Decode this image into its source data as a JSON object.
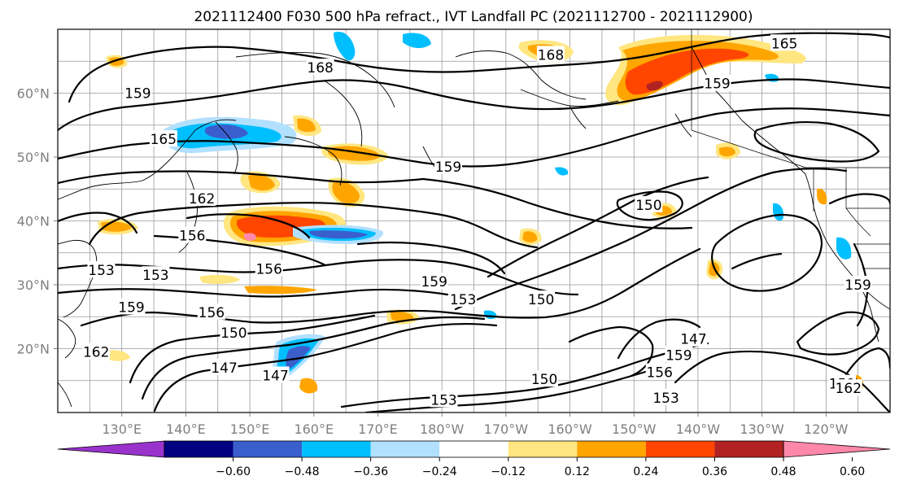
{
  "figure": {
    "title": "2021112400 F030 500 hPa refract., IVT Landfall PC (2021112700 - 2021112900)"
  },
  "map": {
    "lon_range": [
      120,
      -110
    ],
    "lat_range": [
      10,
      70
    ],
    "lon_ticks": [
      {
        "lon": 130,
        "label": "130°E"
      },
      {
        "lon": 140,
        "label": "140°E"
      },
      {
        "lon": 150,
        "label": "150°E"
      },
      {
        "lon": 160,
        "label": "160°E"
      },
      {
        "lon": 170,
        "label": "170°E"
      },
      {
        "lon": 180,
        "label": "180°W"
      },
      {
        "lon": 190,
        "label": "170°W"
      },
      {
        "lon": 200,
        "label": "160°W"
      },
      {
        "lon": 210,
        "label": "150°W"
      },
      {
        "lon": 220,
        "label": "140°W"
      },
      {
        "lon": 230,
        "label": "130°W"
      },
      {
        "lon": 240,
        "label": "120°W"
      }
    ],
    "lat_ticks": [
      {
        "lat": 20,
        "label": "20°N"
      },
      {
        "lat": 30,
        "label": "30°N"
      },
      {
        "lat": 40,
        "label": "40°N"
      },
      {
        "lat": 50,
        "label": "50°N"
      },
      {
        "lat": 60,
        "label": "60°N"
      }
    ],
    "grid_lines": true,
    "grid_lon_step": 5,
    "grid_lat_step": 5,
    "contour_levels": [
      147,
      150,
      153,
      156,
      159,
      162,
      165,
      168
    ],
    "contour_labels": [
      {
        "text": "168",
        "lon": 161,
        "lat": 64
      },
      {
        "text": "168",
        "lon": 197,
        "lat": 66
      },
      {
        "text": "165",
        "lon": 233.5,
        "lat": 67.8
      },
      {
        "text": "159",
        "lon": 132.5,
        "lat": 60
      },
      {
        "text": "159",
        "lon": 223,
        "lat": 61.5
      },
      {
        "text": "165",
        "lon": 136.5,
        "lat": 52.8
      },
      {
        "text": "159",
        "lon": 181,
        "lat": 48.5
      },
      {
        "text": "162",
        "lon": 142.5,
        "lat": 43.5
      },
      {
        "text": "150",
        "lon": 212.3,
        "lat": 42.5
      },
      {
        "text": "156",
        "lon": 141,
        "lat": 37.7
      },
      {
        "text": "153",
        "lon": 126.8,
        "lat": 32.3
      },
      {
        "text": "153",
        "lon": 135.3,
        "lat": 31.5
      },
      {
        "text": "156",
        "lon": 153,
        "lat": 32.5
      },
      {
        "text": "159",
        "lon": 178.8,
        "lat": 30.5
      },
      {
        "text": "159",
        "lon": 131.5,
        "lat": 26.5
      },
      {
        "text": "156",
        "lon": 144,
        "lat": 25.7
      },
      {
        "text": "153",
        "lon": 183.3,
        "lat": 27.7
      },
      {
        "text": "150",
        "lon": 195.5,
        "lat": 27.7
      },
      {
        "text": "150",
        "lon": 147.5,
        "lat": 22.5
      },
      {
        "text": "162",
        "lon": 126,
        "lat": 19.5
      },
      {
        "text": "147",
        "lon": 146,
        "lat": 17
      },
      {
        "text": "147",
        "lon": 154,
        "lat": 15.8
      },
      {
        "text": "147",
        "lon": 219.3,
        "lat": 21.5
      },
      {
        "text": "159",
        "lon": 217,
        "lat": 19
      },
      {
        "text": "156",
        "lon": 214,
        "lat": 16.3
      },
      {
        "text": "150",
        "lon": 196,
        "lat": 15.2
      },
      {
        "text": "153",
        "lon": 180.3,
        "lat": 12
      },
      {
        "text": "153",
        "lon": 215,
        "lat": 12.3
      },
      {
        "text": "159",
        "lon": 242.5,
        "lat": 14.5
      },
      {
        "text": "162",
        "lon": 243.5,
        "lat": 13.8
      },
      {
        "text": "159",
        "lon": 245,
        "lat": 30
      }
    ]
  },
  "colorbar": {
    "tick_labels": [
      "−0.60",
      "−0.48",
      "−0.36",
      "−0.24",
      "−0.12",
      "0.12",
      "0.24",
      "0.36",
      "0.48",
      "0.60"
    ],
    "colors": [
      "#9933cc",
      "#000080",
      "#3a5fcd",
      "#00bfff",
      "#b2e0ff",
      "#ffffff",
      "#ffe680",
      "#ffa500",
      "#ff4500",
      "#b22222",
      "#ff88aa"
    ]
  }
}
